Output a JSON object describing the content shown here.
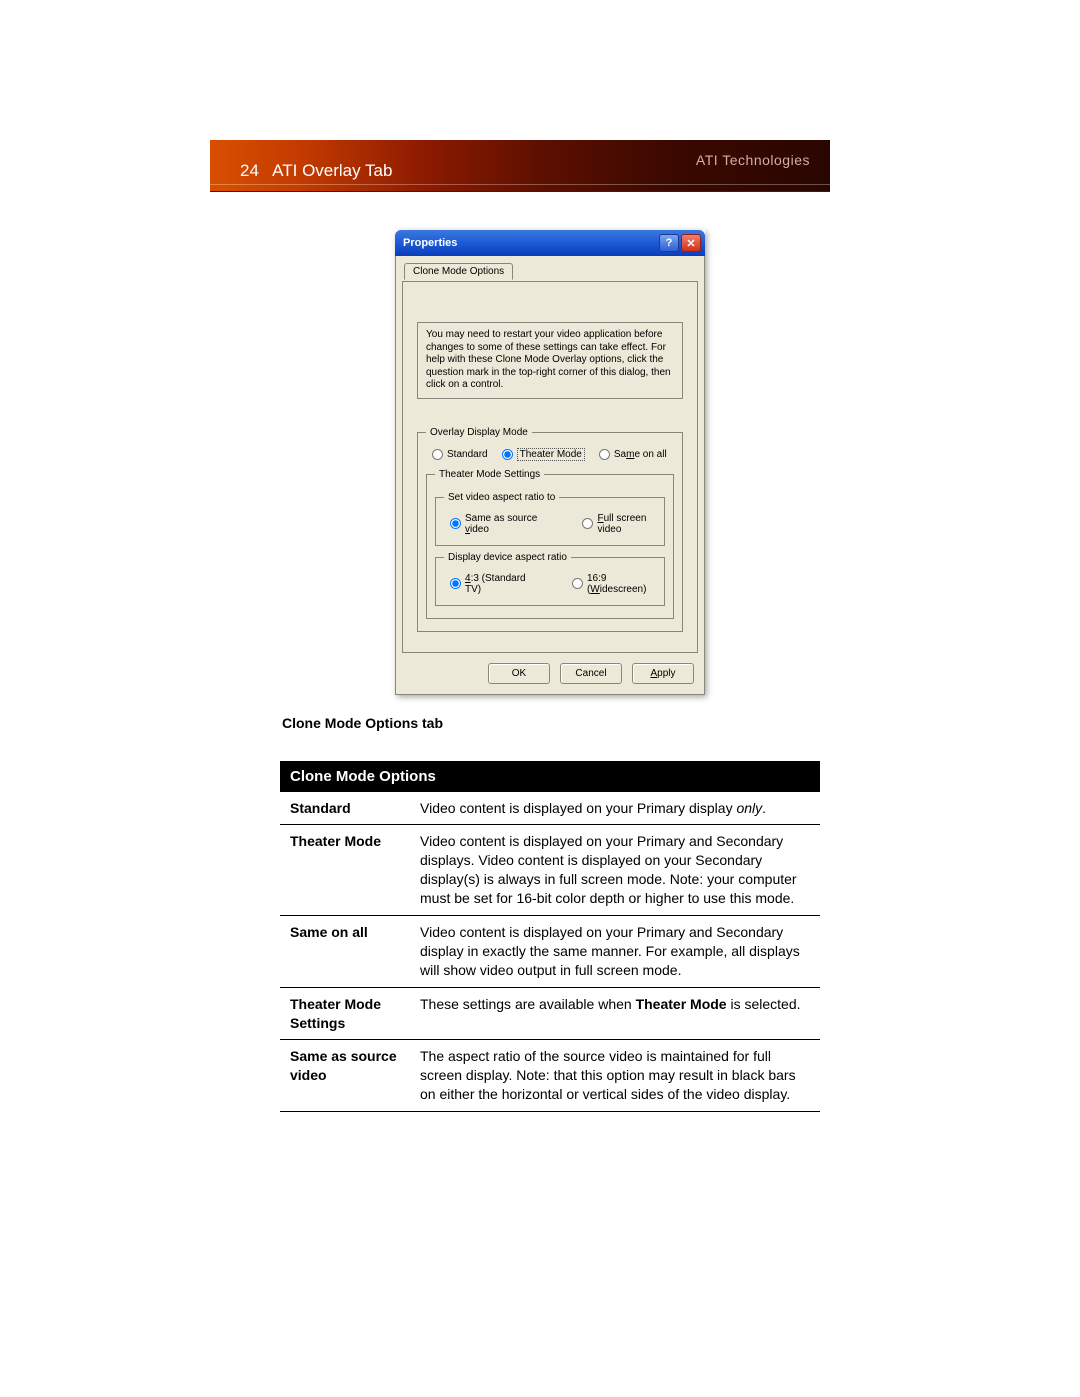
{
  "header": {
    "page_number": "24",
    "page_title": "ATI Overlay Tab",
    "brand": "ATI Technologies"
  },
  "dialog": {
    "title": "Properties",
    "tab_label": "Clone Mode Options",
    "info_text": "You may need to restart your video application before changes to some of these settings can take effect. For help with these Clone Mode Overlay options, click the question mark in the top-right corner of this dialog, then click on a control.",
    "groups": {
      "overlay_display_mode": {
        "legend": "Overlay Display Mode",
        "options": {
          "standard": "Standard",
          "theater": "Theater Mode",
          "same_on_all_prefix": "Sa",
          "same_on_all_u": "m",
          "same_on_all_suffix": "e on all"
        },
        "selected": "theater"
      },
      "theater_mode_settings": {
        "legend": "Theater Mode Settings",
        "aspect_src": {
          "legend": "Set video aspect ratio to",
          "same_prefix": "Same as source ",
          "same_u": "v",
          "same_suffix": "ideo",
          "full_u": "F",
          "full_suffix": "ull screen video",
          "selected": "same"
        },
        "aspect_dev": {
          "legend": "Display device aspect ratio",
          "std_u": "4",
          "std_suffix": ":3 (Standard TV)",
          "wide_prefix": "16:9 (",
          "wide_u": "W",
          "wide_suffix": "idescreen)",
          "selected": "std"
        }
      }
    },
    "buttons": {
      "ok": "OK",
      "cancel": "Cancel",
      "apply_u": "A",
      "apply_suffix": "pply"
    }
  },
  "caption": "Clone Mode Options tab",
  "table": {
    "header": "Clone Mode Options",
    "rows": [
      {
        "k": "Standard",
        "v_pre": "Video content is displayed on your Primary display ",
        "v_ital": "only",
        "v_post": "."
      },
      {
        "k": "Theater Mode",
        "v": "Video content is displayed on your Primary and Secondary displays. Video content is displayed on your Secondary display(s) is always in full screen mode. Note: your computer must be set for 16-bit color depth or higher to use this mode."
      },
      {
        "k": "Same on all",
        "v": "Video content is displayed on your Primary and Secondary display in exactly the same manner. For example, all displays will show video output in full screen mode."
      },
      {
        "k": "Theater Mode Settings",
        "v_pre": "These settings are available when ",
        "v_bold": "Theater Mode",
        "v_post": " is selected."
      },
      {
        "k": "Same as source video",
        "v": "The aspect ratio of the source video is maintained for full screen display. Note: that this option may result in black bars on either the horizontal or vertical sides of the video display."
      }
    ]
  }
}
